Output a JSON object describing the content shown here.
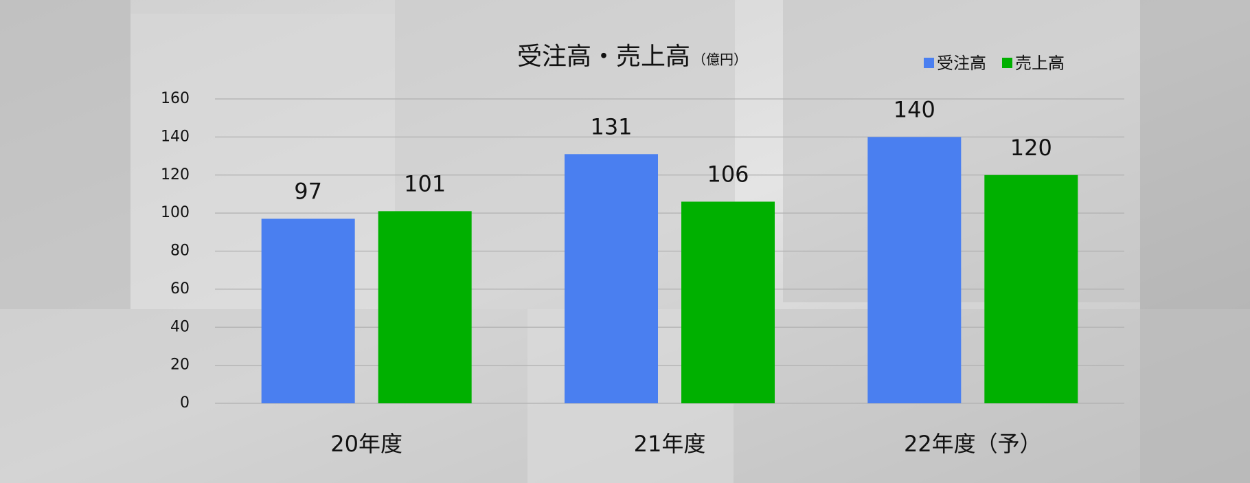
{
  "chart_data": {
    "type": "bar",
    "title": "受注高・売上高",
    "subtitle": "（億円）",
    "categories": [
      "20年度",
      "21年度",
      "22年度（予）"
    ],
    "series": [
      {
        "name": "受注高",
        "color": "#4a7ff0",
        "values": [
          97,
          131,
          140
        ]
      },
      {
        "name": "売上高",
        "color": "#00b000",
        "values": [
          101,
          106,
          120
        ]
      }
    ],
    "ylim": [
      0,
      160
    ],
    "yticks": [
      0,
      20,
      40,
      60,
      80,
      100,
      120,
      140,
      160
    ],
    "grid": true,
    "legend": "top-right"
  }
}
